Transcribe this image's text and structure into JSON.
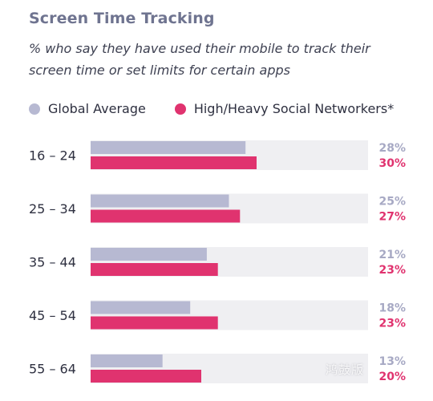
{
  "colors": {
    "global": "#b7b9d2",
    "social": "#e0336f",
    "track": "#efeff2",
    "global_label": "#a7a9c4",
    "social_label": "#e0336f"
  },
  "chart_data": {
    "type": "bar",
    "orientation": "horizontal",
    "title": "Screen Time Tracking",
    "subtitle": "% who say they have used their mobile to track their screen time or set limits for certain apps",
    "categories": [
      "16 – 24",
      "25 – 34",
      "35 – 44",
      "45 – 54",
      "55 – 64"
    ],
    "series": [
      {
        "name": "Global Average",
        "values": [
          28,
          25,
          21,
          18,
          13
        ]
      },
      {
        "name": "High/Heavy Social Networkers*",
        "values": [
          30,
          27,
          23,
          23,
          20
        ]
      }
    ],
    "value_suffix": "%",
    "xlim": [
      0,
      50
    ],
    "grid": false,
    "legend_position": "top-left"
  },
  "watermark": "鸿鼓版"
}
